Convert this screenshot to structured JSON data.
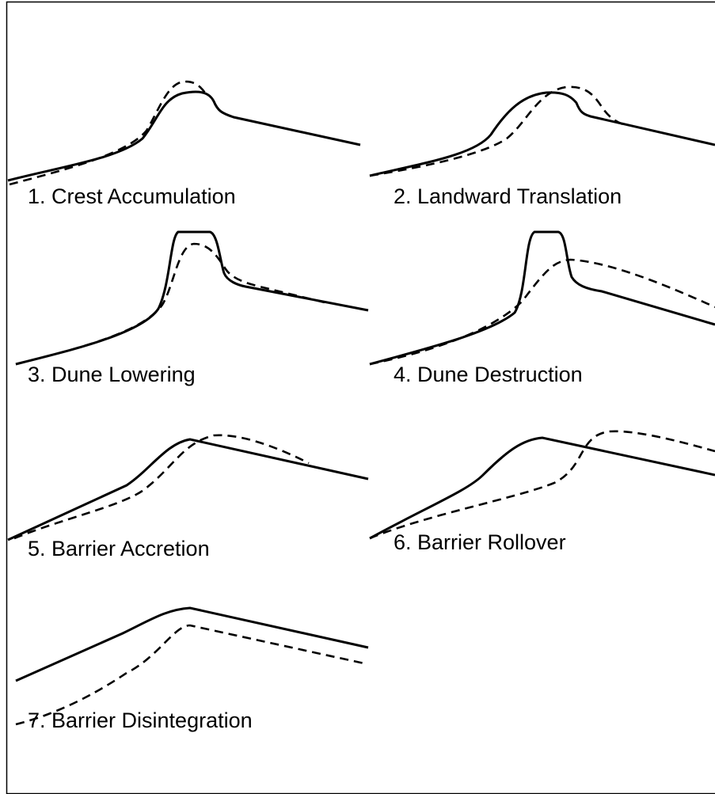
{
  "panels": [
    {
      "label": "1. Crest Accumulation"
    },
    {
      "label": "2. Landward Translation"
    },
    {
      "label": "3. Dune Lowering"
    },
    {
      "label": "4. Dune Destruction"
    },
    {
      "label": "5. Barrier Accretion"
    },
    {
      "label": "6. Barrier Rollover"
    },
    {
      "label": "7. Barrier Disintegration"
    }
  ]
}
